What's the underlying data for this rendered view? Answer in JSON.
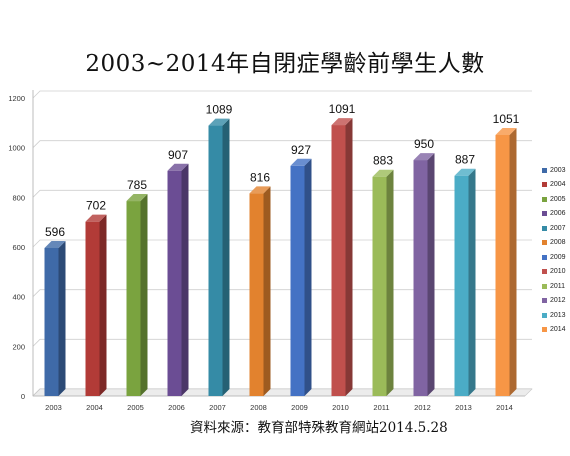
{
  "page": {
    "source_note": "資料來源：教育部特殊教育網站2014.5.28"
  },
  "chart_data": {
    "type": "bar",
    "title": "2003~2014年自閉症學齡前學生人數",
    "categories": [
      "2003",
      "2004",
      "2005",
      "2006",
      "2007",
      "2008",
      "2009",
      "2010",
      "2011",
      "2012",
      "2013",
      "2014"
    ],
    "values": [
      596,
      702,
      785,
      907,
      1089,
      816,
      927,
      1091,
      883,
      950,
      887,
      1051
    ],
    "colors": [
      "#3f6aa8",
      "#b23b37",
      "#7aa33f",
      "#6b4d94",
      "#358ba6",
      "#e2822e",
      "#4472c4",
      "#c0504d",
      "#9bbb59",
      "#8064a2",
      "#4bacc6",
      "#f79646"
    ],
    "ylim": [
      0,
      1200
    ],
    "yticks": [
      "0",
      "200",
      "400",
      "600",
      "800",
      "1000",
      "1200"
    ],
    "legend": [
      "2003",
      "2004",
      "2005",
      "2006",
      "2007",
      "2008",
      "2009",
      "2010",
      "2011",
      "2012",
      "2013",
      "2014"
    ],
    "legend_position": "right",
    "grid": true
  }
}
